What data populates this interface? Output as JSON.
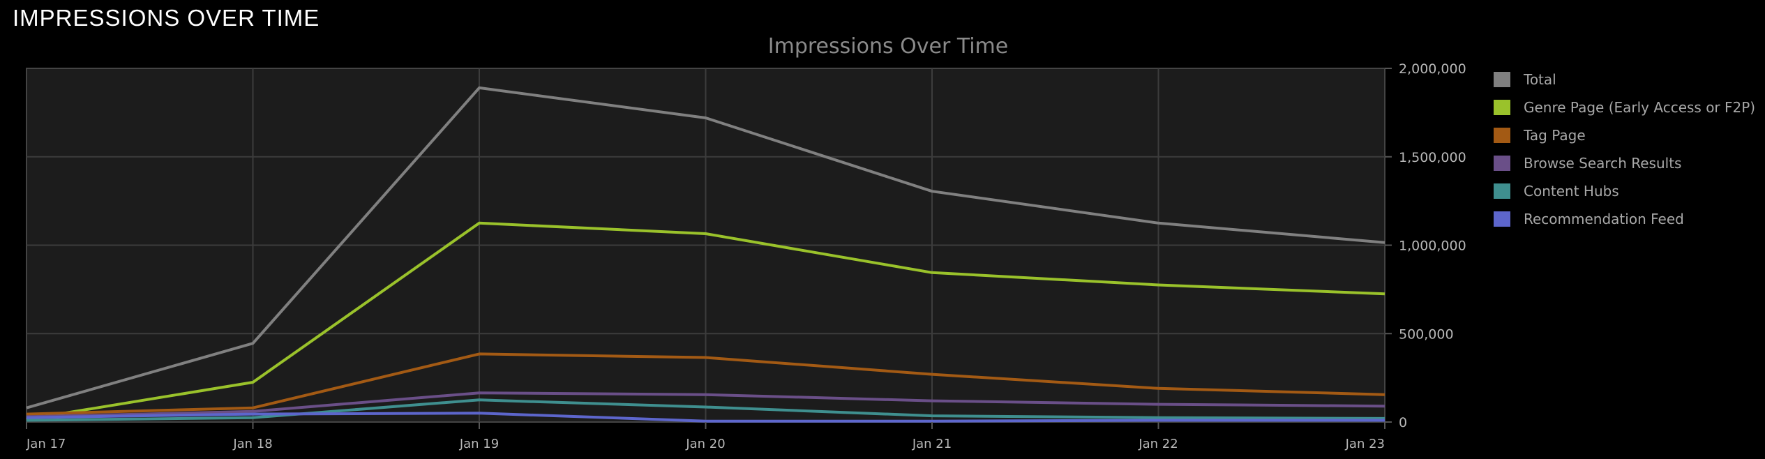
{
  "header": {
    "title": "IMPRESSIONS OVER TIME"
  },
  "chart_data": {
    "type": "line",
    "title": "Impressions Over Time",
    "xlabel": "",
    "ylabel": "",
    "categories": [
      "Jan 17",
      "Jan 18",
      "Jan 19",
      "Jan 20",
      "Jan 21",
      "Jan 22",
      "Jan 23"
    ],
    "ylim": [
      0,
      2000000
    ],
    "yticks": [
      0,
      500000,
      1000000,
      1500000,
      2000000
    ],
    "ytick_labels": [
      "0",
      "500,000",
      "1,000,000",
      "1,500,000",
      "2,000,000"
    ],
    "yaxis_side": "right",
    "grid": true,
    "legend": "right",
    "series": [
      {
        "name": "Total",
        "color": "#808080",
        "values": [
          80000,
          445000,
          1890000,
          1720000,
          1305000,
          1125000,
          1015000
        ]
      },
      {
        "name": "Genre Page (Early Access or F2P)",
        "color": "#9ac22b",
        "values": [
          15000,
          225000,
          1125000,
          1065000,
          845000,
          775000,
          725000
        ]
      },
      {
        "name": "Tag Page",
        "color": "#a35a14",
        "values": [
          45000,
          80000,
          385000,
          365000,
          270000,
          190000,
          155000
        ]
      },
      {
        "name": "Browse Search Results",
        "color": "#6a4f88",
        "values": [
          30000,
          60000,
          165000,
          155000,
          120000,
          100000,
          90000
        ]
      },
      {
        "name": "Content Hubs",
        "color": "#3f8f8f",
        "values": [
          10000,
          25000,
          125000,
          85000,
          35000,
          25000,
          20000
        ]
      },
      {
        "name": "Recommendation Feed",
        "color": "#5d66cc",
        "values": [
          25000,
          45000,
          50000,
          5000,
          5000,
          10000,
          10000
        ]
      }
    ]
  }
}
